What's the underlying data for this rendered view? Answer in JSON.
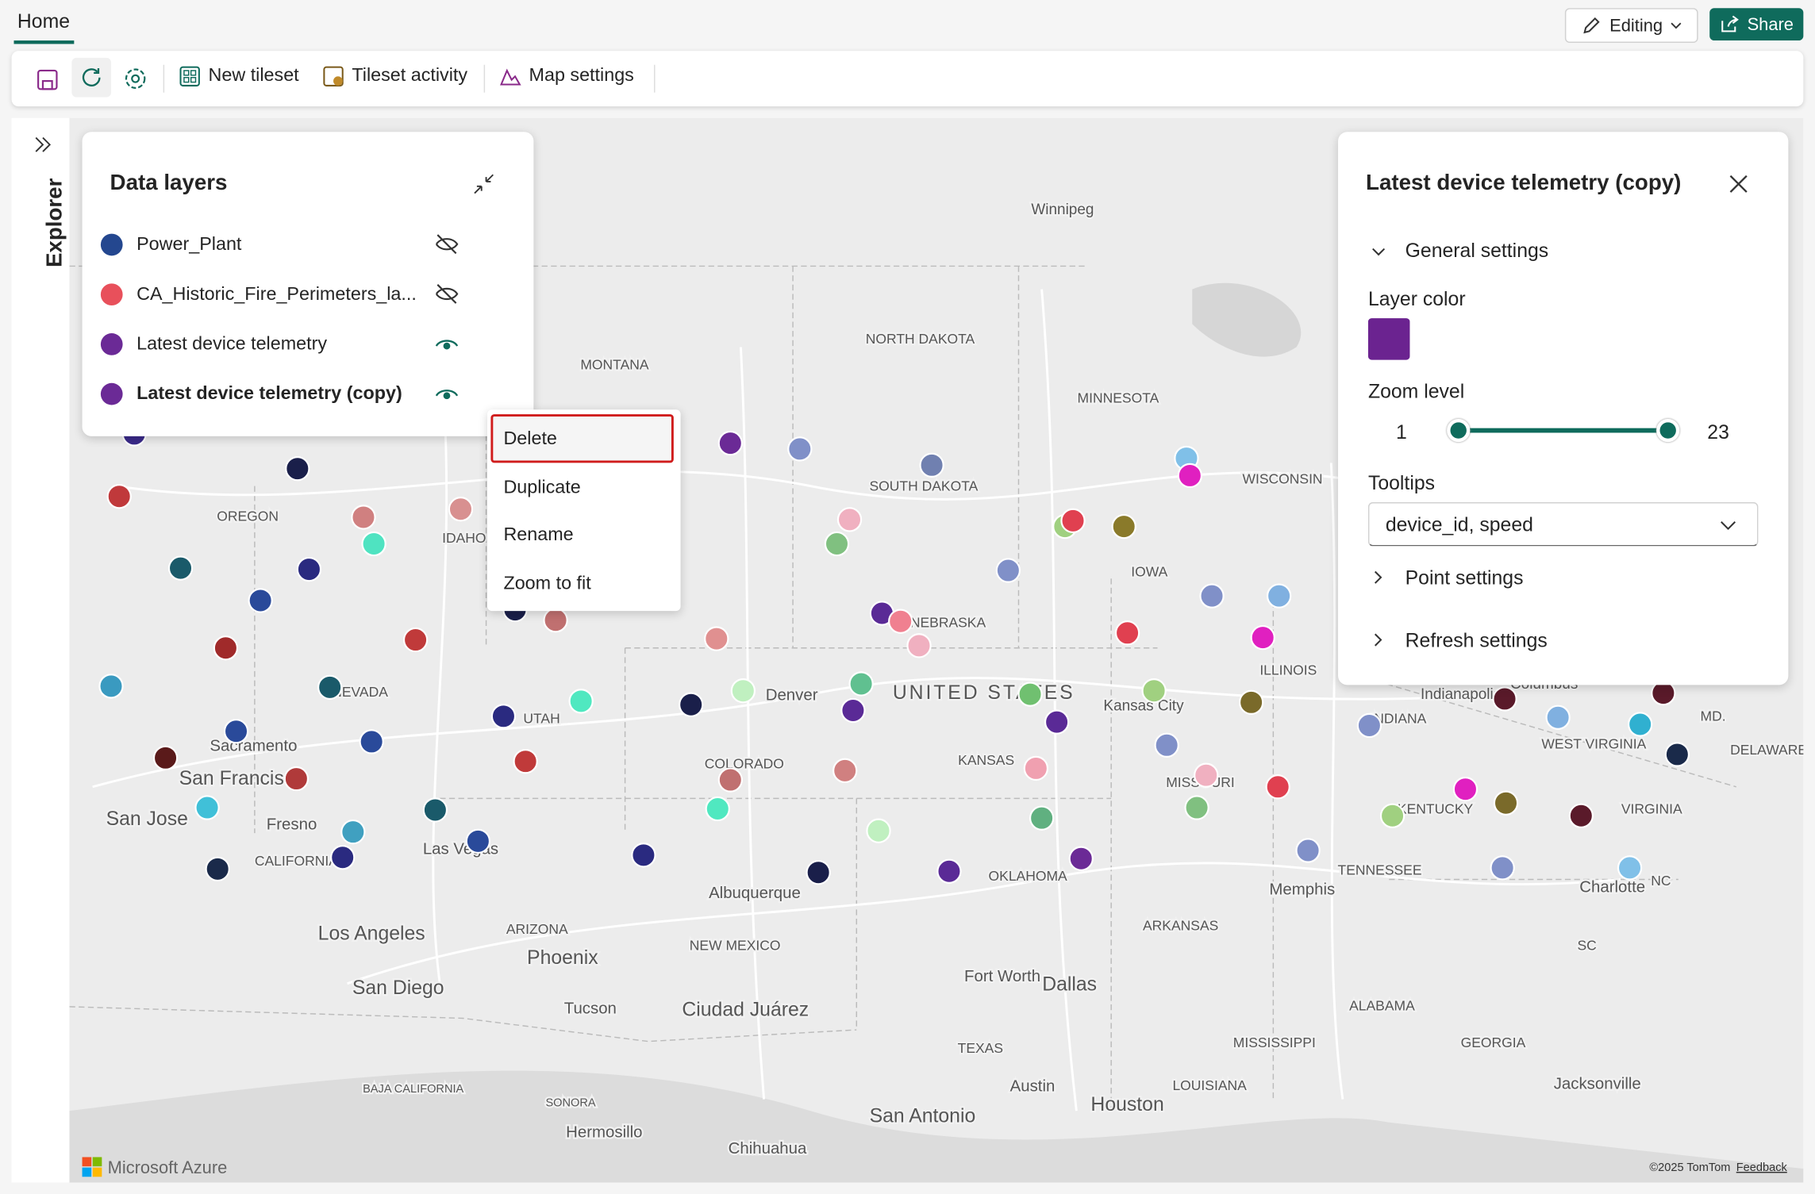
{
  "header": {
    "tab": "Home",
    "editing": "Editing",
    "share": "Share"
  },
  "toolbar": {
    "items": [
      "New tileset",
      "Tileset activity",
      "Map settings"
    ]
  },
  "sidebar": {
    "label": "Explorer"
  },
  "data_layers": {
    "title": "Data layers",
    "layers": [
      {
        "name": "Power_Plant",
        "color": "#24478f",
        "visible": false
      },
      {
        "name": "CA_Historic_Fire_Perimeters_la...",
        "color": "#e8505b",
        "visible": false
      },
      {
        "name": "Latest device telemetry",
        "color": "#6b2a96",
        "visible": true
      },
      {
        "name": "Latest device telemetry (copy)",
        "color": "#6b2a96",
        "visible": true,
        "selected": true
      }
    ]
  },
  "context_menu": {
    "items": [
      "Delete",
      "Duplicate",
      "Rename",
      "Zoom to fit"
    ]
  },
  "settings_panel": {
    "title": "Latest device telemetry (copy)",
    "general_settings": "General settings",
    "layer_color_label": "Layer color",
    "layer_color": "#6b2390",
    "zoom_label": "Zoom level",
    "zoom_min": 1,
    "zoom_max": 23,
    "tooltips_label": "Tooltips",
    "tooltips_value": "device_id, speed",
    "point_settings": "Point settings",
    "refresh_settings": "Refresh settings"
  },
  "map": {
    "labels": [
      "Winnipeg",
      "MONTANA",
      "NORTH DAKOTA",
      "MINNESOTA",
      "SOUTH DAKOTA",
      "WISCONSIN",
      "OREGON",
      "IDAHO",
      "IOWA",
      "NEBRASKA",
      "ILLINOIS",
      "NEVADA",
      "Denver",
      "UNITED STATES",
      "Kansas City",
      "Indianapolis",
      "Columbus",
      "INDIANA",
      "UTAH",
      "Sacramento",
      "COLORADO",
      "KANSAS",
      "WEST VIRGINIA",
      "MD.",
      "DELAWARE",
      "San Francisco",
      "MISSOURI",
      "San Jose",
      "Fresno",
      "KENTUCKY",
      "VIRGINIA",
      "CALIFORNIA",
      "Las Vegas",
      "OKLAHOMA",
      "TENNESSEE",
      "Charlotte",
      "NC",
      "Albuquerque",
      "Memphis",
      "Los Angeles",
      "ARIZONA",
      "ARKANSAS",
      "NEW MEXICO",
      "Phoenix",
      "SC",
      "Fort Worth",
      "Dallas",
      "San Diego",
      "Ciudad Juárez",
      "ALABAMA",
      "Tucson",
      "TEXAS",
      "MISSISSIPPI",
      "GEORGIA",
      "BAJA CALIFORNIA",
      "Austin",
      "LOUISIANA",
      "Jacksonville",
      "Houston",
      "SONORA",
      "San Antonio",
      "Hermosillo",
      "Chihuahua"
    ],
    "brand": "Microsoft Azure",
    "copyright": "©2025 TomTom",
    "feedback": "Feedback"
  }
}
